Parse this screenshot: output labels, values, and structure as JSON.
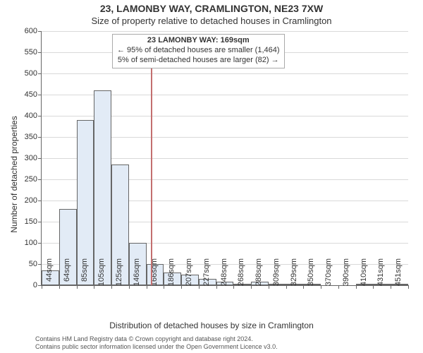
{
  "title_main": "23, LAMONBY WAY, CRAMLINGTON, NE23 7XW",
  "title_sub": "Size of property relative to detached houses in Cramlington",
  "y_axis_label": "Number of detached properties",
  "x_axis_label": "Distribution of detached houses by size in Cramlington",
  "footer_line1": "Contains HM Land Registry data © Crown copyright and database right 2024.",
  "footer_line2": "Contains public sector information licensed under the Open Government Licence v3.0.",
  "annotation": {
    "line1": "23 LAMONBY WAY: 169sqm",
    "line2": "← 95% of detached houses are smaller (1,464)",
    "line3": "5% of semi-detached houses are larger (82) →"
  },
  "chart": {
    "type": "histogram",
    "ylim": [
      0,
      600
    ],
    "ytick_step": 50,
    "background_color": "#ffffff",
    "grid_color": "#d9d9d9",
    "axis_color": "#666666",
    "bar_fill": "#e2ebf6",
    "bar_border": "#666666",
    "marker_color": "#c36f6f",
    "marker_x_value": 169,
    "x_categories": [
      "44sqm",
      "64sqm",
      "85sqm",
      "105sqm",
      "125sqm",
      "146sqm",
      "166sqm",
      "186sqm",
      "207sqm",
      "227sqm",
      "248sqm",
      "268sqm",
      "288sqm",
      "309sqm",
      "329sqm",
      "350sqm",
      "370sqm",
      "390sqm",
      "410sqm",
      "431sqm",
      "451sqm"
    ],
    "x_bin_width": 20,
    "values": [
      35,
      180,
      390,
      460,
      285,
      100,
      50,
      30,
      25,
      15,
      8,
      4,
      8,
      4,
      4,
      4,
      0,
      0,
      4,
      4,
      4
    ],
    "tick_label_fontsize": 11,
    "axis_label_fontsize": 12,
    "title_fontsize": 14
  }
}
